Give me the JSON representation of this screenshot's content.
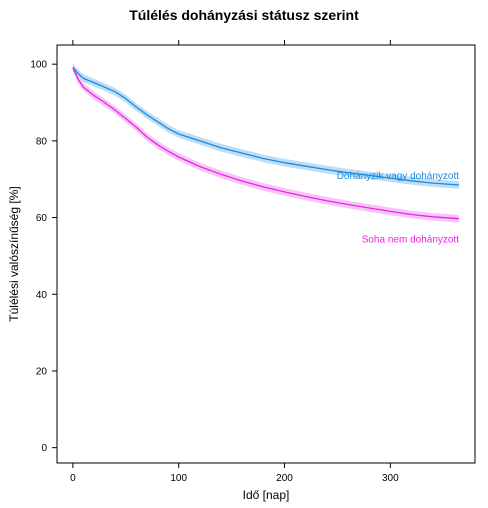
{
  "chart_data": {
    "type": "line",
    "title": "Túlélés dohányzási státusz szerint",
    "xlabel": "Idő [nap]",
    "ylabel": "Túlélési valószínűség [%]",
    "xlim": [
      -15,
      380
    ],
    "ylim": [
      -4,
      105
    ],
    "x_ticks": [
      0,
      100,
      200,
      300
    ],
    "y_ticks": [
      0,
      20,
      40,
      60,
      80,
      100
    ],
    "x_tick_labels": [
      "0",
      "100",
      "200",
      "300"
    ],
    "y_tick_labels": [
      "0",
      "20",
      "40",
      "60",
      "80",
      "100"
    ],
    "x_ticks_mirrored_top": true,
    "grid": false,
    "legend": "inline labels at right end of each line",
    "series": [
      {
        "name": "Dohányzik vagy dohányzott",
        "color": "#1a8be0",
        "band_color": "#a9d3f3",
        "ci_halfwidth": 1.0,
        "x": [
          0,
          5,
          10,
          20,
          30,
          40,
          50,
          60,
          70,
          80,
          90,
          100,
          120,
          140,
          160,
          180,
          200,
          220,
          240,
          260,
          280,
          300,
          320,
          340,
          365
        ],
        "y": [
          99.2,
          97.5,
          96.3,
          95.2,
          94.0,
          92.8,
          91.0,
          88.8,
          86.8,
          85.0,
          83.2,
          81.8,
          80.0,
          78.2,
          76.8,
          75.4,
          74.3,
          73.4,
          72.5,
          71.7,
          71.0,
          70.3,
          69.6,
          69.0,
          68.5
        ]
      },
      {
        "name": "Soha nem dohányzott",
        "color": "#ee22ee",
        "band_color": "#f3b4f3",
        "ci_halfwidth": 1.0,
        "x": [
          0,
          5,
          10,
          20,
          30,
          40,
          50,
          60,
          70,
          80,
          90,
          100,
          120,
          140,
          160,
          180,
          200,
          220,
          240,
          260,
          280,
          300,
          320,
          340,
          365
        ],
        "y": [
          99.0,
          96.0,
          94.0,
          91.8,
          90.0,
          88.0,
          85.8,
          83.5,
          81.0,
          79.0,
          77.3,
          75.8,
          73.3,
          71.3,
          69.5,
          68.0,
          66.7,
          65.5,
          64.4,
          63.4,
          62.5,
          61.6,
          60.8,
          60.2,
          59.7
        ]
      }
    ]
  }
}
